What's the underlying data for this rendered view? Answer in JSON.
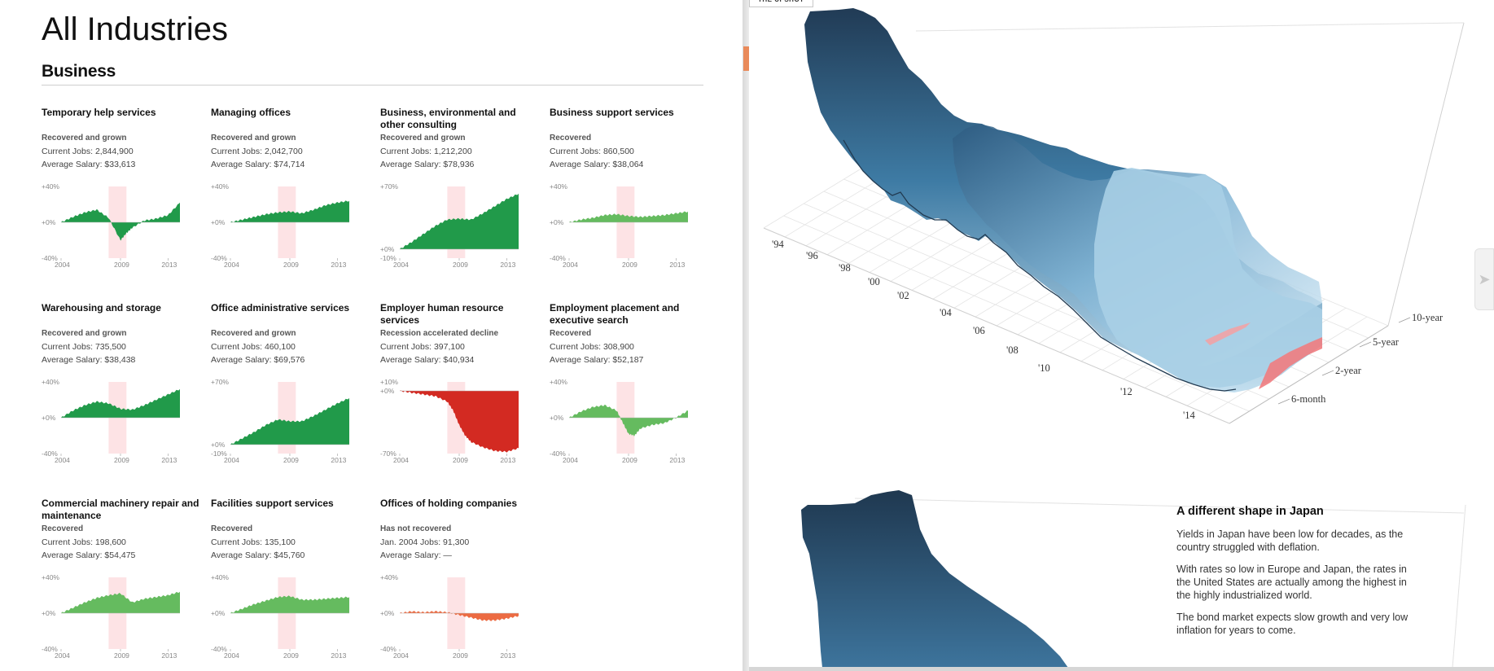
{
  "page": {
    "title": "All Industries",
    "section": "Business"
  },
  "colors": {
    "grown": "#219a4a",
    "recovered": "#65bb5f",
    "accelerated_decline": "#d32a22",
    "not_recovered": "#ec6b42",
    "recession_band": "#fde3e5"
  },
  "x_ticks": [
    "2004",
    "2009",
    "2013"
  ],
  "cards": [
    {
      "title": "Temporary help services",
      "status": "Recovered and grown",
      "jobs": "Current Jobs: 2,844,900",
      "salary": "Average Salary: $33,613",
      "ymax": "+40%",
      "yzero": "+0%",
      "ymin": "-40%"
    },
    {
      "title": "Managing offices",
      "status": "Recovered and grown",
      "jobs": "Current Jobs: 2,042,700",
      "salary": "Average Salary: $74,714",
      "ymax": "+40%",
      "yzero": "+0%",
      "ymin": "-40%"
    },
    {
      "title": "Business, environmental and other consulting",
      "status": "Recovered and grown",
      "jobs": "Current Jobs: 1,212,200",
      "salary": "Average Salary: $78,936",
      "ymax": "+70%",
      "yzero": "+0%",
      "ymin": "-10%"
    },
    {
      "title": "Business support services",
      "status": "Recovered",
      "jobs": "Current Jobs: 860,500",
      "salary": "Average Salary: $38,064",
      "ymax": "+40%",
      "yzero": "+0%",
      "ymin": "-40%"
    },
    {
      "title": "Warehousing and storage",
      "status": "Recovered and grown",
      "jobs": "Current Jobs: 735,500",
      "salary": "Average Salary: $38,438",
      "ymax": "+40%",
      "yzero": "+0%",
      "ymin": "-40%"
    },
    {
      "title": "Office administrative services",
      "status": "Recovered and grown",
      "jobs": "Current Jobs: 460,100",
      "salary": "Average Salary: $69,576",
      "ymax": "+70%",
      "yzero": "+0%",
      "ymin": "-10%"
    },
    {
      "title": "Employer human resource services",
      "status": "Recession accelerated decline",
      "jobs": "Current Jobs: 397,100",
      "salary": "Average Salary: $40,934",
      "ymax": "+10%",
      "yzero": "+0%",
      "ymin": "-70%"
    },
    {
      "title": "Employment placement and executive search",
      "status": "Recovered",
      "jobs": "Current Jobs: 308,900",
      "salary": "Average Salary: $52,187",
      "ymax": "+40%",
      "yzero": "+0%",
      "ymin": "-40%"
    },
    {
      "title": "Commercial machinery repair and maintenance",
      "status": "Recovered",
      "jobs": "Current Jobs: 198,600",
      "salary": "Average Salary: $54,475",
      "ymax": "+40%",
      "yzero": "+0%",
      "ymin": "-40%"
    },
    {
      "title": "Facilities support services",
      "status": "Recovered",
      "jobs": "Current Jobs: 135,100",
      "salary": "Average Salary: $45,760",
      "ymax": "+40%",
      "yzero": "+0%",
      "ymin": "-40%"
    },
    {
      "title": "Offices of holding companies",
      "status": "Has not recovered",
      "jobs": "Jan. 2004 Jobs: 91,300",
      "salary": "Average Salary: —",
      "ymax": "+40%",
      "yzero": "+0%",
      "ymin": "-40%"
    }
  ],
  "chart_data": [
    {
      "type": "area",
      "title": "Temporary help services",
      "x": [
        2004,
        2005,
        2006,
        2007,
        2008,
        2009,
        2009.5,
        2010,
        2011,
        2012,
        2013,
        2014
      ],
      "values": [
        0,
        6,
        11,
        14,
        5,
        -20,
        -12,
        -6,
        2,
        4,
        8,
        22
      ],
      "ylim": [
        -40,
        40
      ],
      "recession": [
        2008,
        2009.5
      ],
      "color": "grown"
    },
    {
      "type": "area",
      "title": "Managing offices",
      "x": [
        2004,
        2005,
        2006,
        2007,
        2008,
        2009,
        2010,
        2011,
        2012,
        2013,
        2014
      ],
      "values": [
        0,
        3,
        6,
        9,
        11,
        12,
        10,
        14,
        19,
        22,
        24
      ],
      "ylim": [
        -40,
        40
      ],
      "recession": [
        2008,
        2009.5
      ],
      "color": "grown"
    },
    {
      "type": "area",
      "title": "Business, environmental and other consulting",
      "x": [
        2004,
        2005,
        2006,
        2007,
        2008,
        2009,
        2010,
        2011,
        2012,
        2013,
        2014
      ],
      "values": [
        0,
        8,
        17,
        26,
        33,
        34,
        33,
        40,
        48,
        56,
        62
      ],
      "ylim": [
        -10,
        70
      ],
      "recession": [
        2008,
        2009.5
      ],
      "color": "grown"
    },
    {
      "type": "area",
      "title": "Business support services",
      "x": [
        2004,
        2005,
        2006,
        2007,
        2008,
        2009,
        2010,
        2011,
        2012,
        2013,
        2014
      ],
      "values": [
        0,
        3,
        5,
        8,
        9,
        7,
        6,
        7,
        8,
        10,
        12
      ],
      "ylim": [
        -40,
        40
      ],
      "recession": [
        2008,
        2009.5
      ],
      "color": "recovered"
    },
    {
      "type": "area",
      "title": "Warehousing and storage",
      "x": [
        2004,
        2005,
        2006,
        2007,
        2008,
        2009,
        2010,
        2011,
        2012,
        2013,
        2014
      ],
      "values": [
        0,
        8,
        14,
        18,
        16,
        10,
        9,
        14,
        20,
        26,
        32
      ],
      "ylim": [
        -40,
        40
      ],
      "recession": [
        2008,
        2009.5
      ],
      "color": "grown"
    },
    {
      "type": "area",
      "title": "Office administrative services",
      "x": [
        2004,
        2005,
        2006,
        2007,
        2008,
        2009,
        2010,
        2011,
        2012,
        2013,
        2014
      ],
      "values": [
        0,
        7,
        14,
        22,
        28,
        26,
        26,
        32,
        39,
        46,
        52
      ],
      "ylim": [
        -10,
        70
      ],
      "recession": [
        2008,
        2009.5
      ],
      "color": "grown"
    },
    {
      "type": "area",
      "title": "Employer human resource services",
      "x": [
        2004,
        2005,
        2006,
        2007,
        2008,
        2008.5,
        2009,
        2009.5,
        2010,
        2011,
        2012,
        2013,
        2014
      ],
      "values": [
        0,
        -2,
        -4,
        -6,
        -12,
        -22,
        -38,
        -50,
        -57,
        -63,
        -67,
        -68,
        -64
      ],
      "ylim": [
        -70,
        10
      ],
      "recession": [
        2008,
        2009.5
      ],
      "color": "accelerated_decline"
    },
    {
      "type": "area",
      "title": "Employment placement and executive search",
      "x": [
        2004,
        2005,
        2006,
        2007,
        2008,
        2008.5,
        2009,
        2009.5,
        2010,
        2011,
        2012,
        2013,
        2014
      ],
      "values": [
        0,
        7,
        12,
        14,
        8,
        -5,
        -18,
        -20,
        -12,
        -8,
        -6,
        0,
        8
      ],
      "ylim": [
        -40,
        40
      ],
      "recession": [
        2008,
        2009.5
      ],
      "color": "recovered"
    },
    {
      "type": "area",
      "title": "Commercial machinery repair and maintenance",
      "x": [
        2004,
        2005,
        2006,
        2007,
        2008,
        2009,
        2010,
        2011,
        2012,
        2013,
        2014
      ],
      "values": [
        0,
        6,
        12,
        17,
        20,
        22,
        12,
        16,
        18,
        20,
        24
      ],
      "ylim": [
        -40,
        40
      ],
      "recession": [
        2008,
        2009.5
      ],
      "color": "recovered"
    },
    {
      "type": "area",
      "title": "Facilities support services",
      "x": [
        2004,
        2005,
        2006,
        2007,
        2008,
        2009,
        2010,
        2011,
        2012,
        2013,
        2014
      ],
      "values": [
        0,
        5,
        10,
        14,
        18,
        19,
        15,
        15,
        16,
        17,
        18
      ],
      "ylim": [
        -40,
        40
      ],
      "recession": [
        2008,
        2009.5
      ],
      "color": "recovered"
    },
    {
      "type": "area",
      "title": "Offices of holding companies",
      "x": [
        2004,
        2005,
        2006,
        2007,
        2008,
        2009,
        2010,
        2011,
        2012,
        2013,
        2014
      ],
      "values": [
        0,
        2,
        1,
        2,
        1,
        -2,
        -5,
        -8,
        -8,
        -6,
        -3
      ],
      "ylim": [
        -40,
        40
      ],
      "recession": [
        2008,
        2009.5
      ],
      "color": "not_recovered"
    }
  ],
  "yield_chart": {
    "years": [
      "'94",
      "'96",
      "'98",
      "'00",
      "'02",
      "'04",
      "'06",
      "'08",
      "'10",
      "'12",
      "'14"
    ],
    "maturities": [
      "6-month",
      "2-year",
      "5-year",
      "10-year"
    ]
  },
  "right_panel": {
    "tab": "THE UPSHOT",
    "japan_title": "A different shape in Japan",
    "japan_paragraphs": [
      "Yields in Japan have been low for decades, as the country struggled with deflation.",
      "With rates so low in Europe and Japan, the rates in the United States are actually among the highest in the highly industrialized world.",
      "The bond market expects slow growth and very low inflation for years to come."
    ],
    "scroll_icon": "chevron-right-icon"
  }
}
